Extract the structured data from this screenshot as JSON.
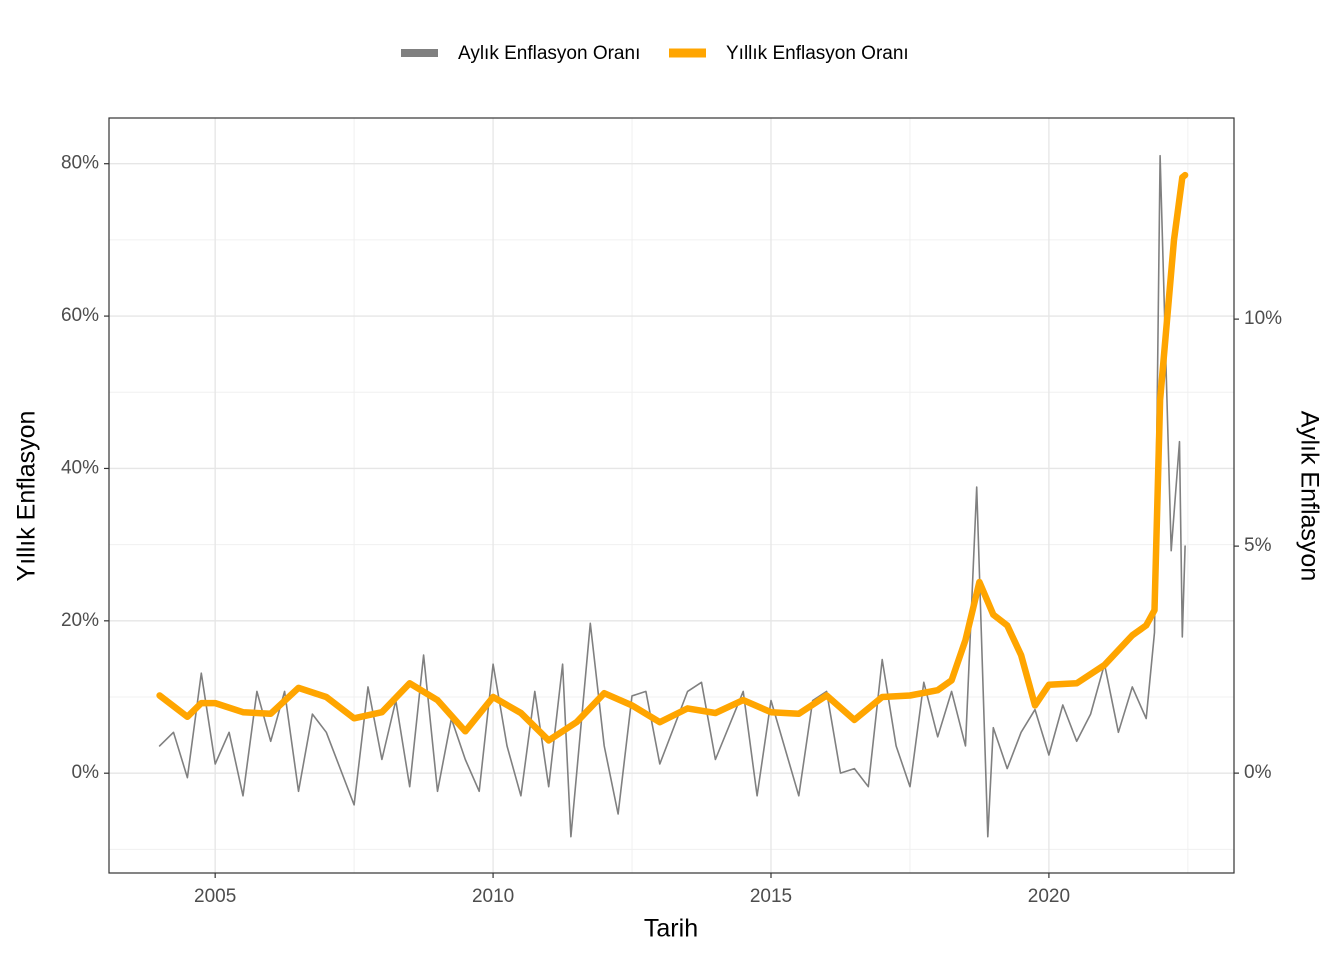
{
  "chart_data": {
    "type": "line",
    "x_label": "Tarih",
    "y_label": "Yıllık Enflasyon",
    "y2_label": "Aylık Enflasyon",
    "xlim": [
      2003.09,
      2023.33
    ],
    "xticks": [
      2005,
      2010,
      2015,
      2020
    ],
    "xminor": [
      2007.5,
      2012.5,
      2017.5,
      2022.5
    ],
    "ylim": [
      -13.1,
      86.0
    ],
    "yticks": [
      {
        "value": 0,
        "label": "0%"
      },
      {
        "value": 20,
        "label": "20%"
      },
      {
        "value": 40,
        "label": "40%"
      },
      {
        "value": 60,
        "label": "60%"
      },
      {
        "value": 80,
        "label": "80%"
      }
    ],
    "yminor": [
      -10,
      10,
      30,
      50,
      70
    ],
    "y2lim": [
      -2.2,
      14.43
    ],
    "y2ticks": [
      {
        "value": 0,
        "label": "0%"
      },
      {
        "value": 5,
        "label": "5%"
      },
      {
        "value": 10,
        "label": "10%"
      }
    ],
    "grid": true,
    "legend": "top",
    "series": [
      {
        "name": "Aylık Enflasyon Oranı",
        "color": "#808080",
        "axis": "y2",
        "x": [
          2004.0,
          2004.25,
          2004.5,
          2004.75,
          2005.0,
          2005.25,
          2005.5,
          2005.75,
          2006.0,
          2006.25,
          2006.5,
          2006.75,
          2007.0,
          2007.5,
          2007.75,
          2008.0,
          2008.25,
          2008.5,
          2008.75,
          2009.0,
          2009.25,
          2009.5,
          2009.75,
          2010.0,
          2010.25,
          2010.5,
          2010.75,
          2011.0,
          2011.25,
          2011.4,
          2011.75,
          2012.0,
          2012.25,
          2012.5,
          2012.75,
          2013.0,
          2013.5,
          2013.75,
          2014.0,
          2014.5,
          2014.75,
          2015.0,
          2015.5,
          2015.75,
          2016.0,
          2016.25,
          2016.5,
          2016.75,
          2017.0,
          2017.25,
          2017.5,
          2017.75,
          2018.0,
          2018.25,
          2018.5,
          2018.7,
          2018.9,
          2019.0,
          2019.25,
          2019.5,
          2019.75,
          2020.0,
          2020.25,
          2020.5,
          2020.75,
          2021.0,
          2021.25,
          2021.5,
          2021.75,
          2021.9,
          2022.0,
          2022.2,
          2022.35,
          2022.4,
          2022.45
        ],
        "values": [
          0.6,
          0.9,
          -0.1,
          2.2,
          0.2,
          0.9,
          -0.5,
          1.8,
          0.7,
          1.8,
          -0.4,
          1.3,
          0.9,
          -0.7,
          1.9,
          0.3,
          1.6,
          -0.3,
          2.6,
          -0.4,
          1.2,
          0.3,
          -0.4,
          2.4,
          0.6,
          -0.5,
          1.8,
          -0.3,
          2.4,
          -1.4,
          3.3,
          0.6,
          -0.9,
          1.7,
          1.8,
          0.2,
          1.8,
          2.0,
          0.3,
          1.8,
          -0.5,
          1.6,
          -0.5,
          1.6,
          1.8,
          0.0,
          0.1,
          -0.3,
          2.5,
          0.6,
          -0.3,
          2.0,
          0.8,
          1.8,
          0.6,
          6.3,
          -1.4,
          1.0,
          0.1,
          0.9,
          1.4,
          0.4,
          1.5,
          0.7,
          1.3,
          2.4,
          0.9,
          1.9,
          1.2,
          3.1,
          13.6,
          4.9,
          7.3,
          3.0,
          5.0
        ]
      },
      {
        "name": "Yıllık Enflasyon Oranı",
        "color": "#FFA500",
        "axis": "y",
        "x": [
          2004.0,
          2004.5,
          2004.75,
          2005.0,
          2005.5,
          2006.0,
          2006.5,
          2007.0,
          2007.5,
          2008.0,
          2008.5,
          2009.0,
          2009.5,
          2010.0,
          2010.5,
          2011.0,
          2011.5,
          2012.0,
          2012.5,
          2013.0,
          2013.5,
          2014.0,
          2014.5,
          2015.0,
          2015.5,
          2016.0,
          2016.5,
          2017.0,
          2017.5,
          2018.0,
          2018.25,
          2018.5,
          2018.75,
          2019.0,
          2019.25,
          2019.5,
          2019.75,
          2020.0,
          2020.5,
          2021.0,
          2021.5,
          2021.75,
          2021.9,
          2022.0,
          2022.25,
          2022.4,
          2022.45
        ],
        "values": [
          10.2,
          7.4,
          9.2,
          9.2,
          8.0,
          7.8,
          11.2,
          10.0,
          7.2,
          8.0,
          11.8,
          9.6,
          5.5,
          10.0,
          7.9,
          4.3,
          6.7,
          10.5,
          8.9,
          6.7,
          8.5,
          7.9,
          9.6,
          8.0,
          7.8,
          10.2,
          7.0,
          10.0,
          10.2,
          10.9,
          12.2,
          17.5,
          25.1,
          20.8,
          19.4,
          15.5,
          8.9,
          11.6,
          11.8,
          14.2,
          18.1,
          19.4,
          21.4,
          49.0,
          70.0,
          78.2,
          78.5
        ]
      }
    ]
  }
}
